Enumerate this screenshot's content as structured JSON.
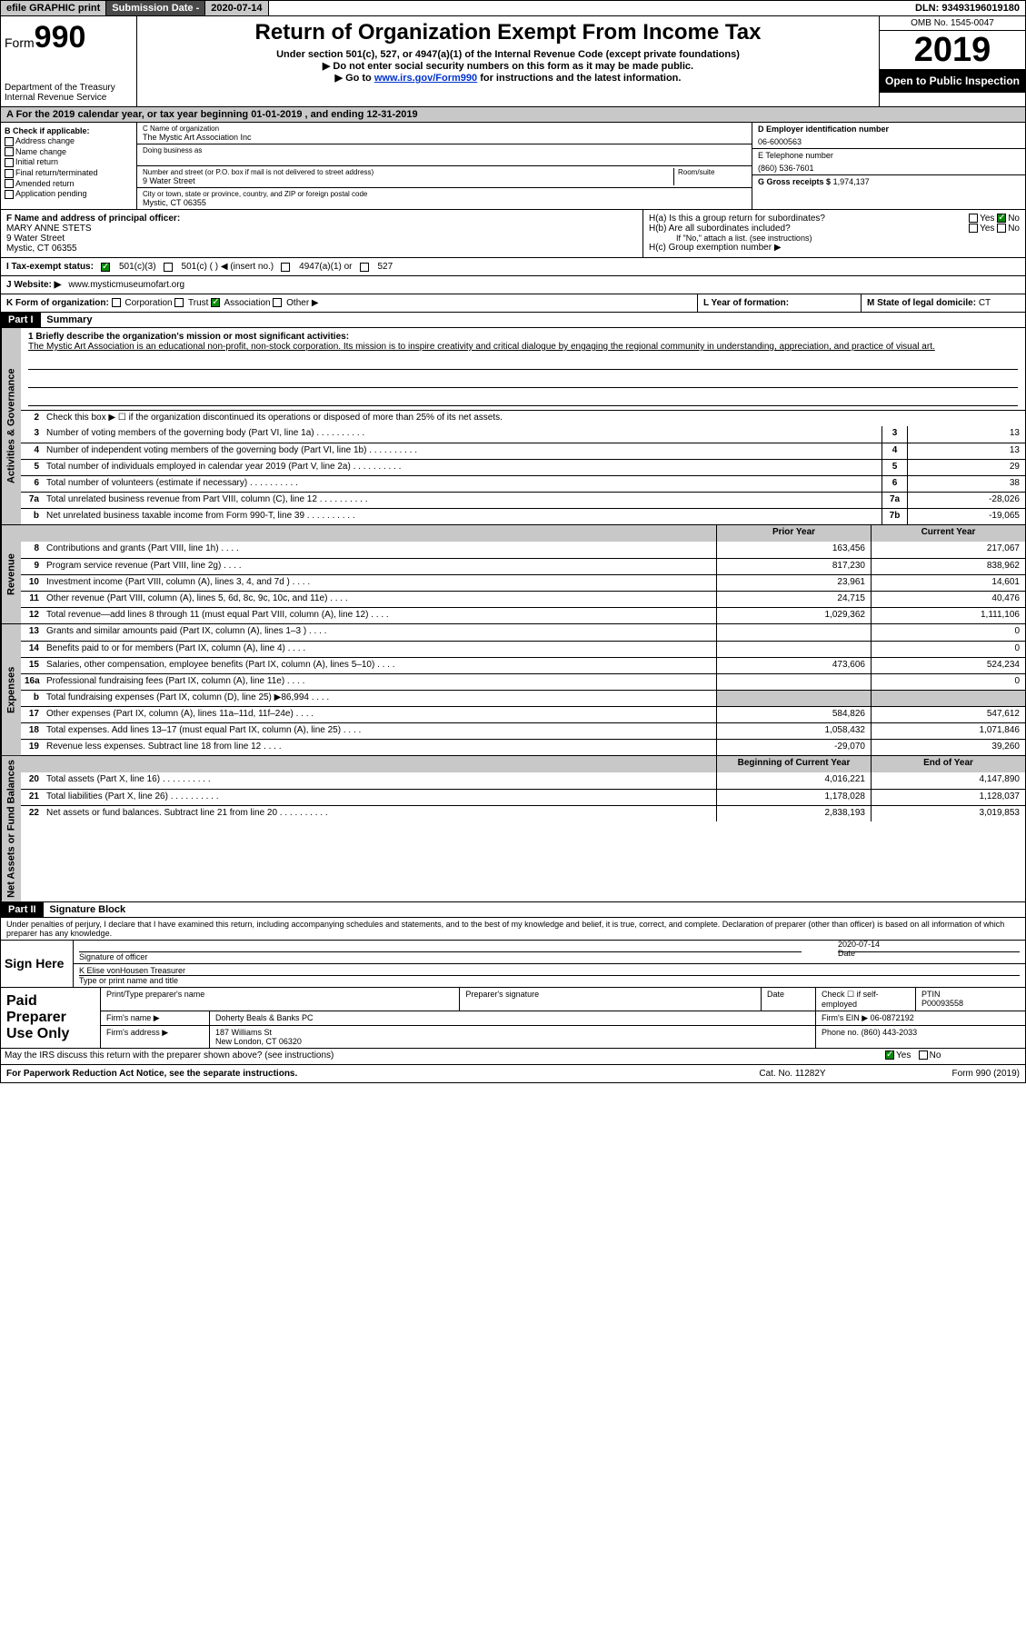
{
  "topbar": {
    "efile": "efile GRAPHIC print",
    "sub_label": "Submission Date -",
    "sub_date": "2020-07-14",
    "dln": "DLN: 93493196019180"
  },
  "header": {
    "form_prefix": "Form",
    "form_num": "990",
    "dept": "Department of the Treasury\nInternal Revenue Service",
    "title": "Return of Organization Exempt From Income Tax",
    "sub1": "Under section 501(c), 527, or 4947(a)(1) of the Internal Revenue Code (except private foundations)",
    "sub2": "▶ Do not enter social security numbers on this form as it may be made public.",
    "sub3_pre": "▶ Go to ",
    "sub3_link": "www.irs.gov/Form990",
    "sub3_post": " for instructions and the latest information.",
    "omb": "OMB No. 1545-0047",
    "year": "2019",
    "open": "Open to Public Inspection"
  },
  "period": {
    "text": "A For the 2019 calendar year, or tax year beginning 01-01-2019   , and ending 12-31-2019"
  },
  "boxB": {
    "label": "B Check if applicable:",
    "items": [
      "Address change",
      "Name change",
      "Initial return",
      "Final return/terminated",
      "Amended return",
      "Application pending"
    ]
  },
  "boxC": {
    "name_lbl": "C Name of organization",
    "name": "The Mystic Art Association Inc",
    "dba_lbl": "Doing business as",
    "addr_lbl": "Number and street (or P.O. box if mail is not delivered to street address)",
    "room_lbl": "Room/suite",
    "addr": "9 Water Street",
    "city_lbl": "City or town, state or province, country, and ZIP or foreign postal code",
    "city": "Mystic, CT  06355"
  },
  "boxD": {
    "lbl": "D Employer identification number",
    "val": "06-6000563"
  },
  "boxE": {
    "lbl": "E Telephone number",
    "val": "(860) 536-7601"
  },
  "boxG": {
    "lbl": "G Gross receipts $",
    "val": "1,974,137"
  },
  "boxF": {
    "lbl": "F  Name and address of principal officer:",
    "name": "MARY ANNE STETS",
    "addr1": "9 Water Street",
    "addr2": "Mystic, CT  06355"
  },
  "boxH": {
    "a": "H(a)  Is this a group return for subordinates?",
    "a_no": "No",
    "b": "H(b)  Are all subordinates included?",
    "b_note": "If \"No,\" attach a list. (see instructions)",
    "c": "H(c)  Group exemption number ▶"
  },
  "taxI": {
    "lbl": "I  Tax-exempt status:",
    "opt1": "501(c)(3)",
    "opt2": "501(c) (  ) ◀ (insert no.)",
    "opt3": "4947(a)(1) or",
    "opt4": "527"
  },
  "boxJ": {
    "lbl": "J  Website: ▶",
    "val": "www.mysticmuseumofart.org"
  },
  "boxK": {
    "lbl": "K Form of organization:",
    "opts": [
      "Corporation",
      "Trust",
      "Association",
      "Other ▶"
    ]
  },
  "boxL": {
    "lbl": "L Year of formation:",
    "val": ""
  },
  "boxM": {
    "lbl": "M State of legal domicile:",
    "val": "CT"
  },
  "part1": {
    "hdr": "Part I",
    "title": "Summary",
    "line1_lbl": "1  Briefly describe the organization's mission or most significant activities:",
    "mission": "The Mystic Art Association is an educational non-profit, non-stock corporation. Its mission is to inspire creativity and critical dialogue by engaging the regional community in understanding, appreciation, and practice of visual art.",
    "line2": "Check this box ▶ ☐  if the organization discontinued its operations or disposed of more than 25% of its net assets."
  },
  "gov_lines": [
    {
      "n": "3",
      "d": "Number of voting members of the governing body (Part VI, line 1a)",
      "b": "3",
      "v": "13"
    },
    {
      "n": "4",
      "d": "Number of independent voting members of the governing body (Part VI, line 1b)",
      "b": "4",
      "v": "13"
    },
    {
      "n": "5",
      "d": "Total number of individuals employed in calendar year 2019 (Part V, line 2a)",
      "b": "5",
      "v": "29"
    },
    {
      "n": "6",
      "d": "Total number of volunteers (estimate if necessary)",
      "b": "6",
      "v": "38"
    },
    {
      "n": "7a",
      "d": "Total unrelated business revenue from Part VIII, column (C), line 12",
      "b": "7a",
      "v": "-28,026"
    },
    {
      "n": "b",
      "d": "Net unrelated business taxable income from Form 990-T, line 39",
      "b": "7b",
      "v": "-19,065"
    }
  ],
  "rev_hdr": {
    "py": "Prior Year",
    "cy": "Current Year"
  },
  "rev_lines": [
    {
      "n": "8",
      "d": "Contributions and grants (Part VIII, line 1h)",
      "py": "163,456",
      "cy": "217,067"
    },
    {
      "n": "9",
      "d": "Program service revenue (Part VIII, line 2g)",
      "py": "817,230",
      "cy": "838,962"
    },
    {
      "n": "10",
      "d": "Investment income (Part VIII, column (A), lines 3, 4, and 7d )",
      "py": "23,961",
      "cy": "14,601"
    },
    {
      "n": "11",
      "d": "Other revenue (Part VIII, column (A), lines 5, 6d, 8c, 9c, 10c, and 11e)",
      "py": "24,715",
      "cy": "40,476"
    },
    {
      "n": "12",
      "d": "Total revenue—add lines 8 through 11 (must equal Part VIII, column (A), line 12)",
      "py": "1,029,362",
      "cy": "1,111,106"
    }
  ],
  "exp_lines": [
    {
      "n": "13",
      "d": "Grants and similar amounts paid (Part IX, column (A), lines 1–3 )",
      "py": "",
      "cy": "0"
    },
    {
      "n": "14",
      "d": "Benefits paid to or for members (Part IX, column (A), line 4)",
      "py": "",
      "cy": "0"
    },
    {
      "n": "15",
      "d": "Salaries, other compensation, employee benefits (Part IX, column (A), lines 5–10)",
      "py": "473,606",
      "cy": "524,234"
    },
    {
      "n": "16a",
      "d": "Professional fundraising fees (Part IX, column (A), line 11e)",
      "py": "",
      "cy": "0"
    },
    {
      "n": "b",
      "d": "Total fundraising expenses (Part IX, column (D), line 25) ▶86,994",
      "py": "shaded",
      "cy": "shaded"
    },
    {
      "n": "17",
      "d": "Other expenses (Part IX, column (A), lines 11a–11d, 11f–24e)",
      "py": "584,826",
      "cy": "547,612"
    },
    {
      "n": "18",
      "d": "Total expenses. Add lines 13–17 (must equal Part IX, column (A), line 25)",
      "py": "1,058,432",
      "cy": "1,071,846"
    },
    {
      "n": "19",
      "d": "Revenue less expenses. Subtract line 18 from line 12",
      "py": "-29,070",
      "cy": "39,260"
    }
  ],
  "net_hdr": {
    "py": "Beginning of Current Year",
    "cy": "End of Year"
  },
  "net_lines": [
    {
      "n": "20",
      "d": "Total assets (Part X, line 16)",
      "py": "4,016,221",
      "cy": "4,147,890"
    },
    {
      "n": "21",
      "d": "Total liabilities (Part X, line 26)",
      "py": "1,178,028",
      "cy": "1,128,037"
    },
    {
      "n": "22",
      "d": "Net assets or fund balances. Subtract line 21 from line 20",
      "py": "2,838,193",
      "cy": "3,019,853"
    }
  ],
  "part2": {
    "hdr": "Part II",
    "title": "Signature Block"
  },
  "sig": {
    "decl": "Under penalties of perjury, I declare that I have examined this return, including accompanying schedules and statements, and to the best of my knowledge and belief, it is true, correct, and complete. Declaration of preparer (other than officer) is based on all information of which preparer has any knowledge.",
    "sign_here": "Sign Here",
    "sig_officer": "Signature of officer",
    "date": "2020-07-14",
    "date_lbl": "Date",
    "name": "K Elise vonHousen  Treasurer",
    "name_lbl": "Type or print name and title"
  },
  "prep": {
    "title": "Paid Preparer Use Only",
    "h1": "Print/Type preparer's name",
    "h2": "Preparer's signature",
    "h3": "Date",
    "h4": "Check ☐ if self-employed",
    "h5_lbl": "PTIN",
    "h5": "P00093558",
    "firm_lbl": "Firm's name    ▶",
    "firm": "Doherty Beals & Banks PC",
    "ein_lbl": "Firm's EIN ▶",
    "ein": "06-0872192",
    "addr_lbl": "Firm's address ▶",
    "addr": "187 Williams St",
    "addr2": "New London, CT  06320",
    "phone_lbl": "Phone no.",
    "phone": "(860) 443-2033",
    "discuss": "May the IRS discuss this return with the preparer shown above? (see instructions)",
    "yes": "Yes",
    "no": "No"
  },
  "footer": {
    "left": "For Paperwork Reduction Act Notice, see the separate instructions.",
    "mid": "Cat. No. 11282Y",
    "right": "Form 990 (2019)"
  },
  "vtabs": {
    "gov": "Activities & Governance",
    "rev": "Revenue",
    "exp": "Expenses",
    "net": "Net Assets or Fund Balances"
  }
}
